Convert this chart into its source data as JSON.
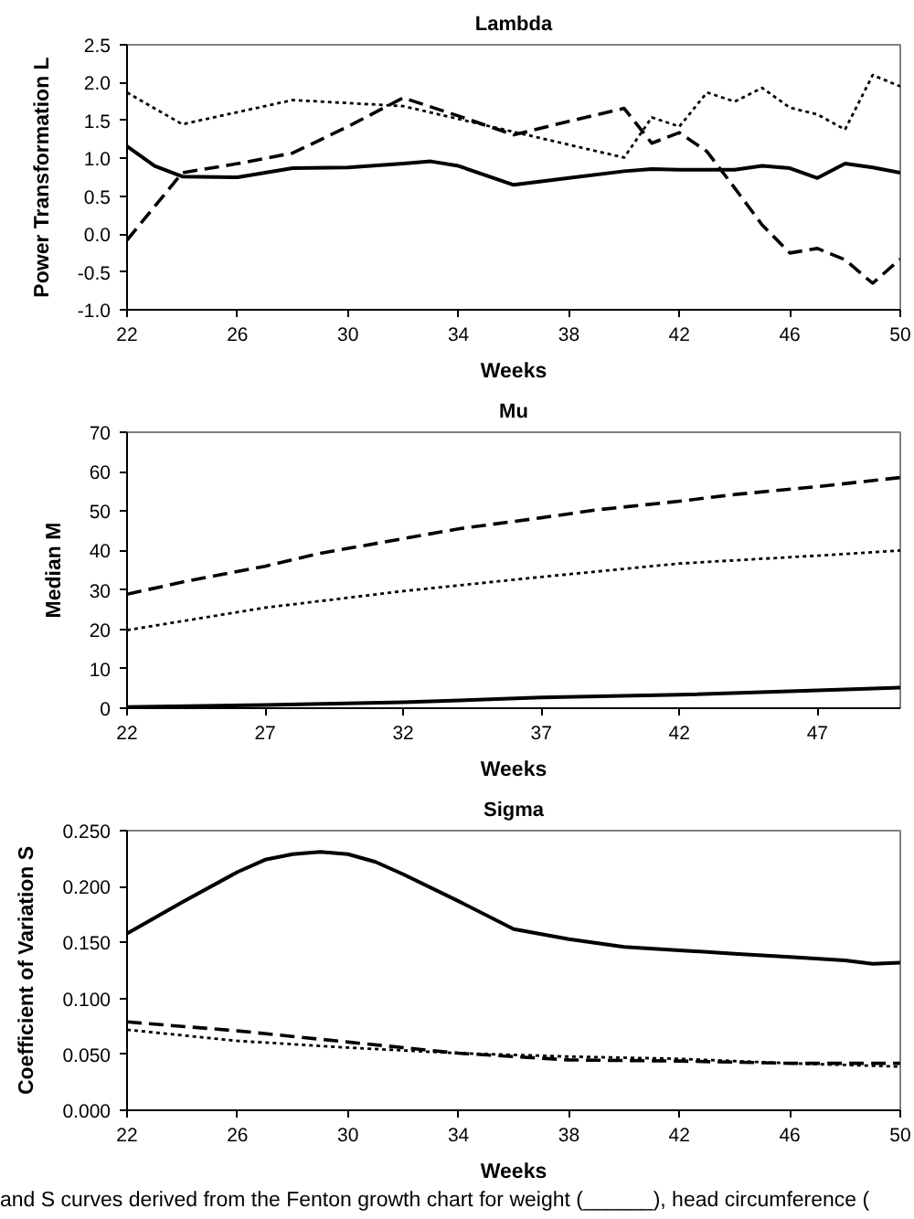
{
  "chart_data": [
    {
      "type": "line",
      "title": "Lambda",
      "xlabel": "Weeks",
      "ylabel": "Power Transformation L",
      "xlim": [
        22,
        50
      ],
      "ylim": [
        -1,
        2.5
      ],
      "xticks": [
        22,
        26,
        30,
        34,
        38,
        42,
        46,
        50
      ],
      "yticks": [
        2.5,
        {
          "value": 2,
          "label": "2.0"
        },
        1.5,
        {
          "value": 1,
          "label": "1.0"
        },
        0.5,
        {
          "value": 0,
          "label": "0.0"
        },
        -0.5,
        {
          "value": -1,
          "label": "-1.0"
        }
      ],
      "series": [
        {
          "color": "#000000",
          "line_style": "solid",
          "x": [
            22,
            23,
            24,
            26,
            28,
            30,
            32,
            33,
            34,
            36,
            38,
            40,
            41,
            42,
            43,
            44,
            45,
            46,
            47,
            48,
            49,
            50
          ],
          "values": [
            1.16,
            0.9,
            0.76,
            0.75,
            0.87,
            0.88,
            0.93,
            0.96,
            0.9,
            0.65,
            0.74,
            0.83,
            0.86,
            0.85,
            0.85,
            0.85,
            0.9,
            0.87,
            0.74,
            0.93,
            0.88,
            0.81
          ]
        },
        {
          "color": "#000000",
          "line_style": "dashed",
          "x": [
            22,
            24,
            26,
            28,
            30,
            32,
            34,
            36,
            38,
            40,
            41,
            42,
            43,
            44,
            45,
            46,
            47,
            48,
            49,
            50
          ],
          "values": [
            -0.08,
            0.81,
            0.93,
            1.07,
            1.42,
            1.8,
            1.56,
            1.31,
            1.49,
            1.66,
            1.2,
            1.34,
            1.09,
            0.61,
            0.12,
            -0.25,
            -0.19,
            -0.34,
            -0.65,
            -0.33
          ]
        },
        {
          "color": "#000000",
          "line_style": "dotted",
          "x": [
            22,
            24,
            28,
            30,
            32,
            40,
            41,
            42,
            43,
            44,
            45,
            46,
            47,
            48,
            49,
            50
          ],
          "values": [
            1.87,
            1.45,
            1.77,
            1.73,
            1.69,
            1.01,
            1.54,
            1.42,
            1.87,
            1.75,
            1.93,
            1.67,
            1.58,
            1.38,
            2.1,
            1.95
          ]
        }
      ]
    },
    {
      "type": "line",
      "title": "Mu",
      "xlabel": "Weeks",
      "ylabel": "Median M",
      "xlim": [
        22,
        50
      ],
      "ylim": [
        0,
        70
      ],
      "xticks": [
        22,
        27,
        32,
        37,
        42,
        47
      ],
      "yticks": [
        0,
        10,
        20,
        30,
        40,
        50,
        60,
        70
      ],
      "series": [
        {
          "color": "#000000",
          "line_style": "solid",
          "x": [
            22,
            27,
            32,
            37,
            42,
            47,
            50
          ],
          "values": [
            0.3,
            0.8,
            1.5,
            2.7,
            3.4,
            4.5,
            5.2
          ]
        },
        {
          "color": "#000000",
          "line_style": "dashed",
          "x": [
            22,
            24,
            27,
            29,
            32,
            34,
            37,
            39,
            42,
            44,
            47,
            50
          ],
          "values": [
            28.9,
            32.0,
            36.0,
            39.3,
            43.0,
            45.5,
            48.3,
            50.3,
            52.5,
            54.2,
            56.2,
            58.5
          ]
        },
        {
          "color": "#000000",
          "line_style": "dotted",
          "x": [
            22,
            27,
            32,
            37,
            42,
            47,
            50
          ],
          "values": [
            19.8,
            25.5,
            29.7,
            33.3,
            36.7,
            38.7,
            40.0
          ]
        }
      ]
    },
    {
      "type": "line",
      "title": "Sigma",
      "xlabel": "Weeks",
      "ylabel": "Coefficient of Variation S",
      "xlim": [
        22,
        50
      ],
      "ylim": [
        0,
        0.25
      ],
      "xticks": [
        22,
        26,
        30,
        34,
        38,
        42,
        46,
        50
      ],
      "yticks": [
        {
          "value": 0,
          "label": "0.000"
        },
        {
          "value": 0.05,
          "label": "0.050"
        },
        {
          "value": 0.1,
          "label": "0.100"
        },
        {
          "value": 0.15,
          "label": "0.150"
        },
        {
          "value": 0.2,
          "label": "0.200"
        },
        {
          "value": 0.25,
          "label": "0.250"
        }
      ],
      "series": [
        {
          "color": "#000000",
          "line_style": "solid",
          "x": [
            22,
            24,
            26,
            27,
            28,
            29,
            30,
            31,
            32,
            34,
            36,
            38,
            40,
            42,
            44,
            46,
            48,
            49,
            50
          ],
          "values": [
            0.158,
            0.186,
            0.213,
            0.224,
            0.229,
            0.231,
            0.229,
            0.222,
            0.211,
            0.187,
            0.162,
            0.153,
            0.146,
            0.143,
            0.14,
            0.137,
            0.134,
            0.131,
            0.132
          ]
        },
        {
          "color": "#000000",
          "line_style": "dashed",
          "x": [
            22,
            26,
            30,
            34,
            38,
            42,
            46,
            50
          ],
          "values": [
            0.079,
            0.071,
            0.061,
            0.051,
            0.045,
            0.044,
            0.042,
            0.042
          ]
        },
        {
          "color": "#000000",
          "line_style": "dotted",
          "x": [
            22,
            26,
            30,
            34,
            38,
            42,
            46,
            50
          ],
          "values": [
            0.072,
            0.062,
            0.056,
            0.051,
            0.048,
            0.046,
            0.042,
            0.039
          ]
        }
      ],
      "annotations": [
        "and S curves derived from the Fenton growth chart for weight (______), head circumference ("
      ]
    }
  ]
}
